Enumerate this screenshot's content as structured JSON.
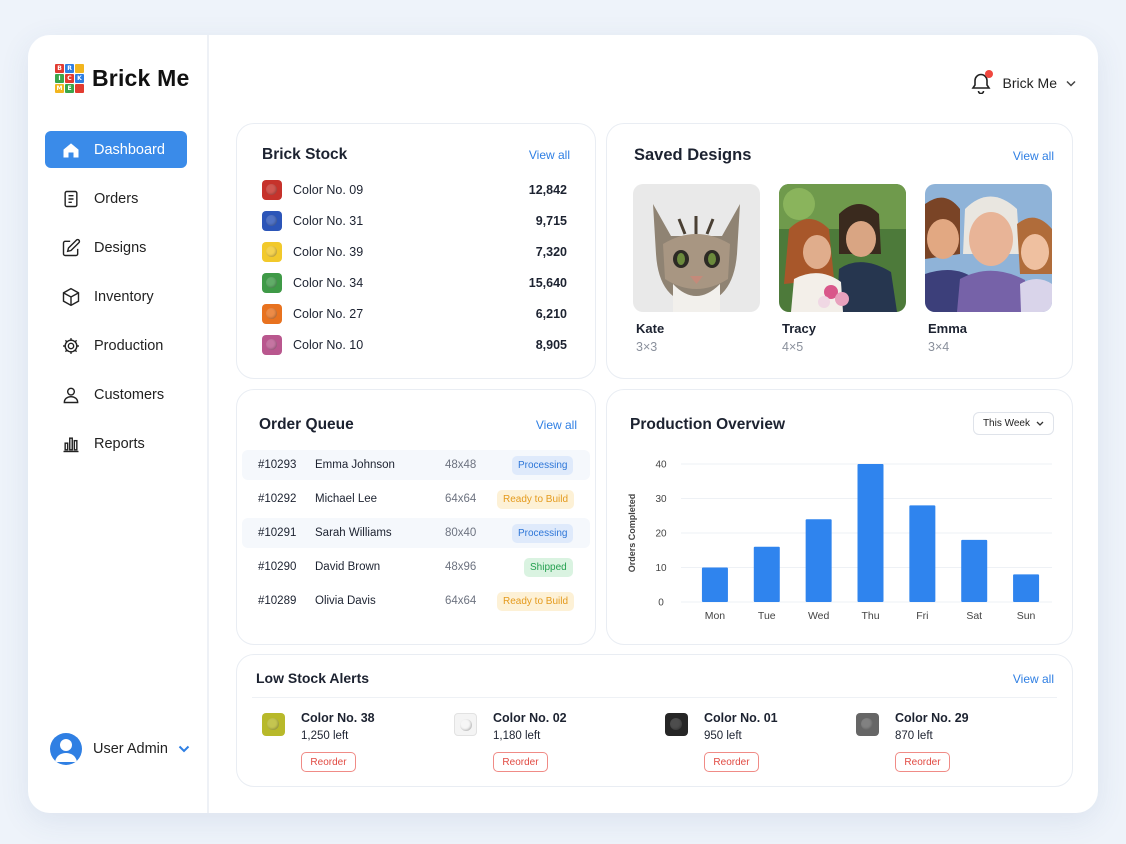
{
  "brand": {
    "name": "Brick Me",
    "logo_letters": [
      "B",
      "R",
      "I",
      "C",
      "K",
      "M",
      "E"
    ],
    "colors": {
      "accent": "#3a8be9",
      "link": "#2f7fe3"
    }
  },
  "sidebar": {
    "items": [
      {
        "label": "Dashboard",
        "icon": "home-icon",
        "active": true
      },
      {
        "label": "Orders",
        "icon": "document-icon"
      },
      {
        "label": "Designs",
        "icon": "edit-icon"
      },
      {
        "label": "Inventory",
        "icon": "cube-icon"
      },
      {
        "label": "Production",
        "icon": "gear-icon"
      },
      {
        "label": "Customers",
        "icon": "user-icon"
      },
      {
        "label": "Reports",
        "icon": "bar-chart-icon"
      }
    ],
    "user": {
      "name": "User Admin"
    }
  },
  "topbar": {
    "account_name": "Brick Me"
  },
  "brick_stock": {
    "title": "Brick Stock",
    "view_all": "View all",
    "items": [
      {
        "name": "Color No. 09",
        "value": "12,842",
        "color": "#c6322b"
      },
      {
        "name": "Color No. 31",
        "value": "9,715",
        "color": "#2c55b8"
      },
      {
        "name": "Color No. 39",
        "value": "7,320",
        "color": "#f2c92b"
      },
      {
        "name": "Color No. 34",
        "value": "15,640",
        "color": "#3f9a47"
      },
      {
        "name": "Color No. 27",
        "value": "6,210",
        "color": "#e8721f"
      },
      {
        "name": "Color No. 10",
        "value": "8,905",
        "color": "#b9578e"
      }
    ]
  },
  "saved_designs": {
    "title": "Saved Designs",
    "view_all": "View all",
    "items": [
      {
        "name": "Kate",
        "size": "3×3"
      },
      {
        "name": "Tracy",
        "size": "4×5"
      },
      {
        "name": "Emma",
        "size": "3×4"
      }
    ]
  },
  "order_queue": {
    "title": "Order Queue",
    "view_all": "View all",
    "rows": [
      {
        "id": "#10293",
        "name": "Emma Johnson",
        "size": "48x48",
        "status": "Processing",
        "status_type": "processing"
      },
      {
        "id": "#10292",
        "name": "Michael Lee",
        "size": "64x64",
        "status": "Ready to Build",
        "status_type": "ready"
      },
      {
        "id": "#10291",
        "name": "Sarah Williams",
        "size": "80x40",
        "status": "Processing",
        "status_type": "processing"
      },
      {
        "id": "#10290",
        "name": "David Brown",
        "size": "48x96",
        "status": "Shipped",
        "status_type": "shipped"
      },
      {
        "id": "#10289",
        "name": "Olivia Davis",
        "size": "64x64",
        "status": "Ready to Build",
        "status_type": "ready"
      }
    ]
  },
  "production": {
    "title": "Production Overview",
    "range_select": "This Week"
  },
  "chart_data": {
    "type": "bar",
    "categories": [
      "Mon",
      "Tue",
      "Wed",
      "Thu",
      "Fri",
      "Sat",
      "Sun"
    ],
    "values": [
      10,
      16,
      24,
      40,
      28,
      18,
      8
    ],
    "ylabel": "Orders Completed",
    "ylim": [
      0,
      40
    ],
    "yticks": [
      "0",
      "10",
      "20",
      "30",
      "40"
    ],
    "grid": true,
    "bar_color": "#2f84ee"
  },
  "low_stock": {
    "title": "Low Stock Alerts",
    "view_all": "View all",
    "items": [
      {
        "name": "Color No. 38",
        "left": "1,250 left",
        "color": "#b8b92a",
        "action": "Reorder"
      },
      {
        "name": "Color No. 02",
        "left": "1,180 left",
        "color": "#f4f4f4",
        "action": "Reorder"
      },
      {
        "name": "Color No. 01",
        "left": "950 left",
        "color": "#262626",
        "action": "Reorder"
      },
      {
        "name": "Color No. 29",
        "left": "870 left",
        "color": "#666666",
        "action": "Reorder"
      }
    ]
  }
}
